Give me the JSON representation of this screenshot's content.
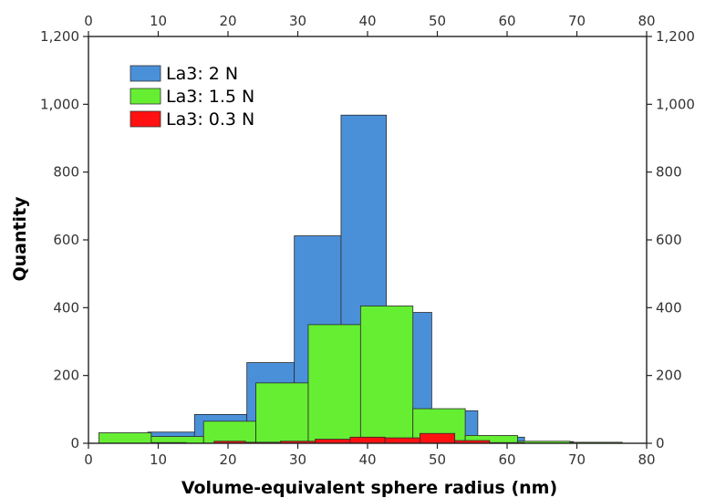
{
  "chart_data": {
    "type": "bar",
    "xlabel": "Volume-equivalent sphere radius (nm)",
    "ylabel": "Quantity",
    "xlim": [
      0,
      80
    ],
    "ylim": [
      0,
      1200
    ],
    "x_ticks": [
      0,
      10,
      20,
      30,
      40,
      50,
      60,
      70,
      80
    ],
    "y_ticks": [
      0,
      200,
      400,
      600,
      800,
      1000,
      1200
    ],
    "y_tick_labels": [
      "0",
      "200",
      "400",
      "600",
      "800",
      "1,000",
      "1,200"
    ],
    "legend_position": "top-left",
    "series": [
      {
        "name": "La3: 2 N",
        "color": "#4a90d9",
        "bins": [
          {
            "x0": 8.5,
            "x1": 15.2,
            "value": 33
          },
          {
            "x0": 15.2,
            "x1": 22.7,
            "value": 85
          },
          {
            "x0": 22.7,
            "x1": 29.5,
            "value": 238
          },
          {
            "x0": 29.5,
            "x1": 36.2,
            "value": 612
          },
          {
            "x0": 36.2,
            "x1": 42.7,
            "value": 968
          },
          {
            "x0": 42.7,
            "x1": 49.2,
            "value": 386
          },
          {
            "x0": 49.2,
            "x1": 55.8,
            "value": 96
          },
          {
            "x0": 55.8,
            "x1": 62.5,
            "value": 18
          },
          {
            "x0": 62.5,
            "x1": 69.5,
            "value": 5
          }
        ]
      },
      {
        "name": "La3: 1.5 N",
        "color": "#66ee33",
        "bins": [
          {
            "x0": 1.5,
            "x1": 9.0,
            "value": 31
          },
          {
            "x0": 9.0,
            "x1": 16.5,
            "value": 20
          },
          {
            "x0": 16.5,
            "x1": 24.0,
            "value": 65
          },
          {
            "x0": 24.0,
            "x1": 31.5,
            "value": 178
          },
          {
            "x0": 31.5,
            "x1": 39.0,
            "value": 350
          },
          {
            "x0": 39.0,
            "x1": 46.5,
            "value": 405
          },
          {
            "x0": 46.5,
            "x1": 54.0,
            "value": 102
          },
          {
            "x0": 54.0,
            "x1": 61.5,
            "value": 23
          },
          {
            "x0": 61.5,
            "x1": 69.0,
            "value": 6
          },
          {
            "x0": 69.0,
            "x1": 76.5,
            "value": 3
          }
        ]
      },
      {
        "name": "La3: 0.3 N",
        "color": "#ff1111",
        "bins": [
          {
            "x0": 9.0,
            "x1": 14.0,
            "value": 2
          },
          {
            "x0": 18.0,
            "x1": 22.5,
            "value": 6
          },
          {
            "x0": 22.5,
            "x1": 27.5,
            "value": 3
          },
          {
            "x0": 27.5,
            "x1": 32.5,
            "value": 6
          },
          {
            "x0": 32.5,
            "x1": 37.5,
            "value": 12
          },
          {
            "x0": 37.5,
            "x1": 42.5,
            "value": 18
          },
          {
            "x0": 42.5,
            "x1": 47.5,
            "value": 16
          },
          {
            "x0": 47.5,
            "x1": 52.5,
            "value": 29
          },
          {
            "x0": 52.5,
            "x1": 57.5,
            "value": 8
          },
          {
            "x0": 57.5,
            "x1": 62.5,
            "value": 2
          }
        ]
      }
    ]
  }
}
